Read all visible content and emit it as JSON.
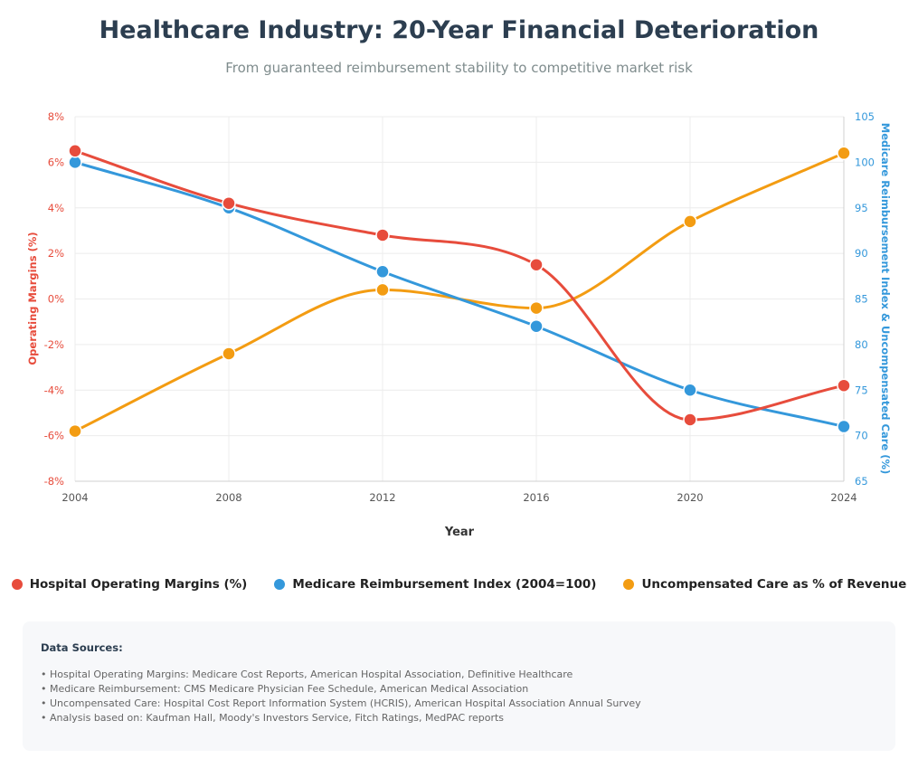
{
  "title": "Healthcare Industry: 20-Year Financial Deterioration",
  "subtitle": "From guaranteed reimbursement stability to competitive market risk",
  "chart_data": {
    "type": "line",
    "x": [
      2004,
      2008,
      2012,
      2016,
      2020,
      2024
    ],
    "xlabel": "Year",
    "y_left": {
      "label": "Operating Margins (%)",
      "range": [
        -8,
        8
      ],
      "ticks": [
        "-8%",
        "-6%",
        "-4%",
        "-2%",
        "0%",
        "2%",
        "4%",
        "6%",
        "8%"
      ],
      "color": "#e74c3c"
    },
    "y_right": {
      "label": "Medicare Reimbursement Index & Uncompensated Care (%)",
      "range": [
        65,
        105
      ],
      "ticks": [
        "65",
        "70",
        "75",
        "80",
        "85",
        "90",
        "95",
        "100",
        "105"
      ],
      "color": "#3498db"
    },
    "series": [
      {
        "name": "Hospital Operating Margins (%)",
        "axis": "left",
        "color": "#e74c3c",
        "values": [
          6.5,
          4.2,
          2.8,
          1.5,
          -5.3,
          -3.8
        ]
      },
      {
        "name": "Medicare Reimbursement Index (2004=100)",
        "axis": "right",
        "color": "#3498db",
        "values": [
          100,
          95,
          88,
          82,
          75,
          71
        ]
      },
      {
        "name": "Uncompensated Care as % of Revenue",
        "axis": "left",
        "color": "#f39c12",
        "values": [
          -5.8,
          -2.4,
          0.4,
          -0.4,
          3.4,
          6.4
        ]
      }
    ],
    "grid": true,
    "legend_position": "bottom"
  },
  "sources": {
    "title": "Data Sources:",
    "items": [
      "Hospital Operating Margins: Medicare Cost Reports, American Hospital Association, Definitive Healthcare",
      "Medicare Reimbursement: CMS Medicare Physician Fee Schedule, American Medical Association",
      "Uncompensated Care: Hospital Cost Report Information System (HCRIS), American Hospital Association Annual Survey",
      "Analysis based on: Kaufman Hall, Moody's Investors Service, Fitch Ratings, MedPAC reports"
    ]
  }
}
